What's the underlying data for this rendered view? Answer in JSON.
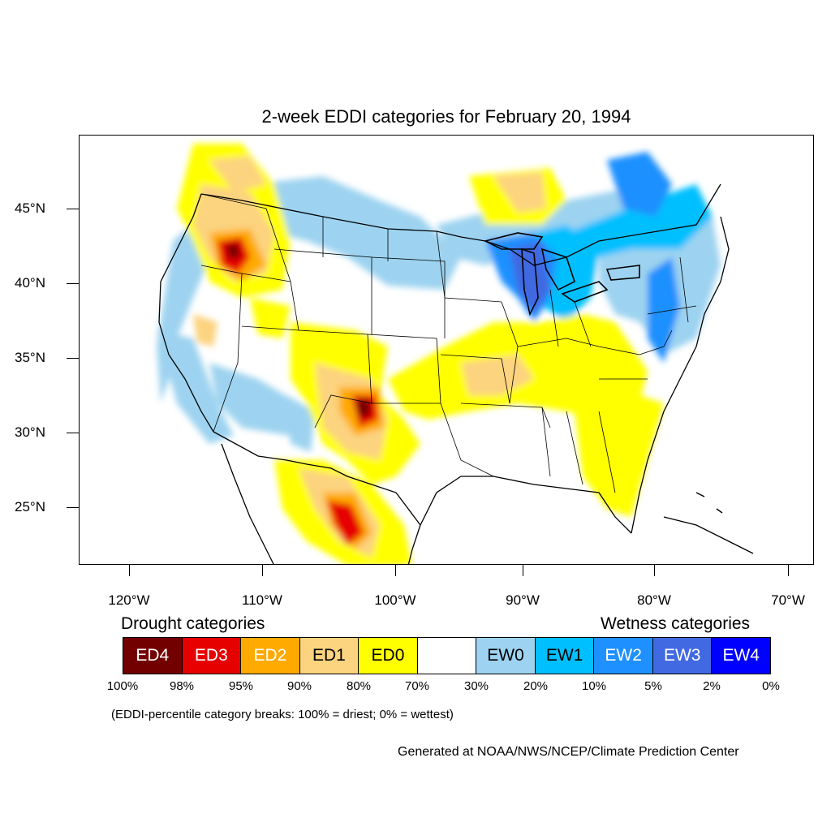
{
  "title": "2-week EDDI categories for February 20, 1994",
  "lat_labels": [
    "45°N",
    "40°N",
    "35°N",
    "30°N",
    "25°N"
  ],
  "lon_labels": [
    "120°W",
    "110°W",
    "100°W",
    "90°W",
    "80°W",
    "70°W"
  ],
  "legend": {
    "drought_heading": "Drought categories",
    "wetness_heading": "Wetness categories",
    "categories": [
      {
        "label": "ED4",
        "color": "#730000",
        "text_color": "#ffffff"
      },
      {
        "label": "ED3",
        "color": "#e60000",
        "text_color": "#ffffff"
      },
      {
        "label": "ED2",
        "color": "#ffaa00",
        "text_color": "#ffffff"
      },
      {
        "label": "ED1",
        "color": "#fcd37f",
        "text_color": "#000000"
      },
      {
        "label": "ED0",
        "color": "#ffff00",
        "text_color": "#000000"
      },
      {
        "label": "",
        "color": "#ffffff",
        "text_color": "#000000"
      },
      {
        "label": "EW0",
        "color": "#9dd3f0",
        "text_color": "#000000"
      },
      {
        "label": "EW1",
        "color": "#00bfff",
        "text_color": "#000000"
      },
      {
        "label": "EW2",
        "color": "#1e90ff",
        "text_color": "#ffffff"
      },
      {
        "label": "EW3",
        "color": "#4169e1",
        "text_color": "#ffffff"
      },
      {
        "label": "EW4",
        "color": "#0000ff",
        "text_color": "#ffffff"
      }
    ],
    "percent_breaks": [
      "100%",
      "98%",
      "95%",
      "90%",
      "80%",
      "70%",
      "30%",
      "20%",
      "10%",
      "5%",
      "2%",
      "0%"
    ]
  },
  "note": "(EDDI-percentile category breaks: 100% = driest; 0% = wettest)",
  "credit": "Generated at NOAA/NWS/NCEP/Climate Prediction Center"
}
